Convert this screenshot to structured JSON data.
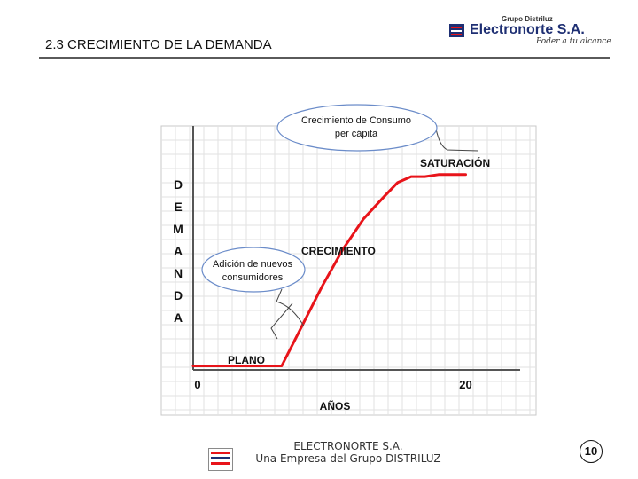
{
  "header": {
    "title": "2.3  CRECIMIENTO DE LA DEMANDA",
    "logo_group": "Grupo Distriluz",
    "logo_name": "Electronorte S.A.",
    "logo_slogan": "Poder a tu alcance",
    "brand_color": "#1e2f73"
  },
  "chart_data": {
    "type": "line",
    "title": "",
    "ylabel": "DEMANDA",
    "xlabel": "AÑOS",
    "x_ticks": [
      "0",
      "20"
    ],
    "xlim": [
      0,
      24
    ],
    "ylim": [
      0,
      100
    ],
    "grid": true,
    "series": [
      {
        "color": "#e8141a",
        "x": [
          0,
          6.5,
          8,
          9.5,
          11,
          12.5,
          14,
          15,
          16,
          17,
          18,
          19,
          20
        ],
        "y": [
          2,
          2,
          22,
          42,
          60,
          75,
          86,
          93,
          96,
          96,
          97,
          97,
          97
        ]
      }
    ],
    "annotations": [
      "PLANO",
      "CRECIMIENTO",
      "SATURACIÓN"
    ],
    "callouts": {
      "upper": [
        "Crecimiento de Consumo",
        "per cápita"
      ],
      "lower": [
        "Adición de nuevos",
        "consumidores"
      ]
    }
  },
  "footer": {
    "company": "ELECTRONORTE S.A.",
    "tagline": "Una Empresa del Grupo DISTRILUZ",
    "page_number": "10"
  }
}
